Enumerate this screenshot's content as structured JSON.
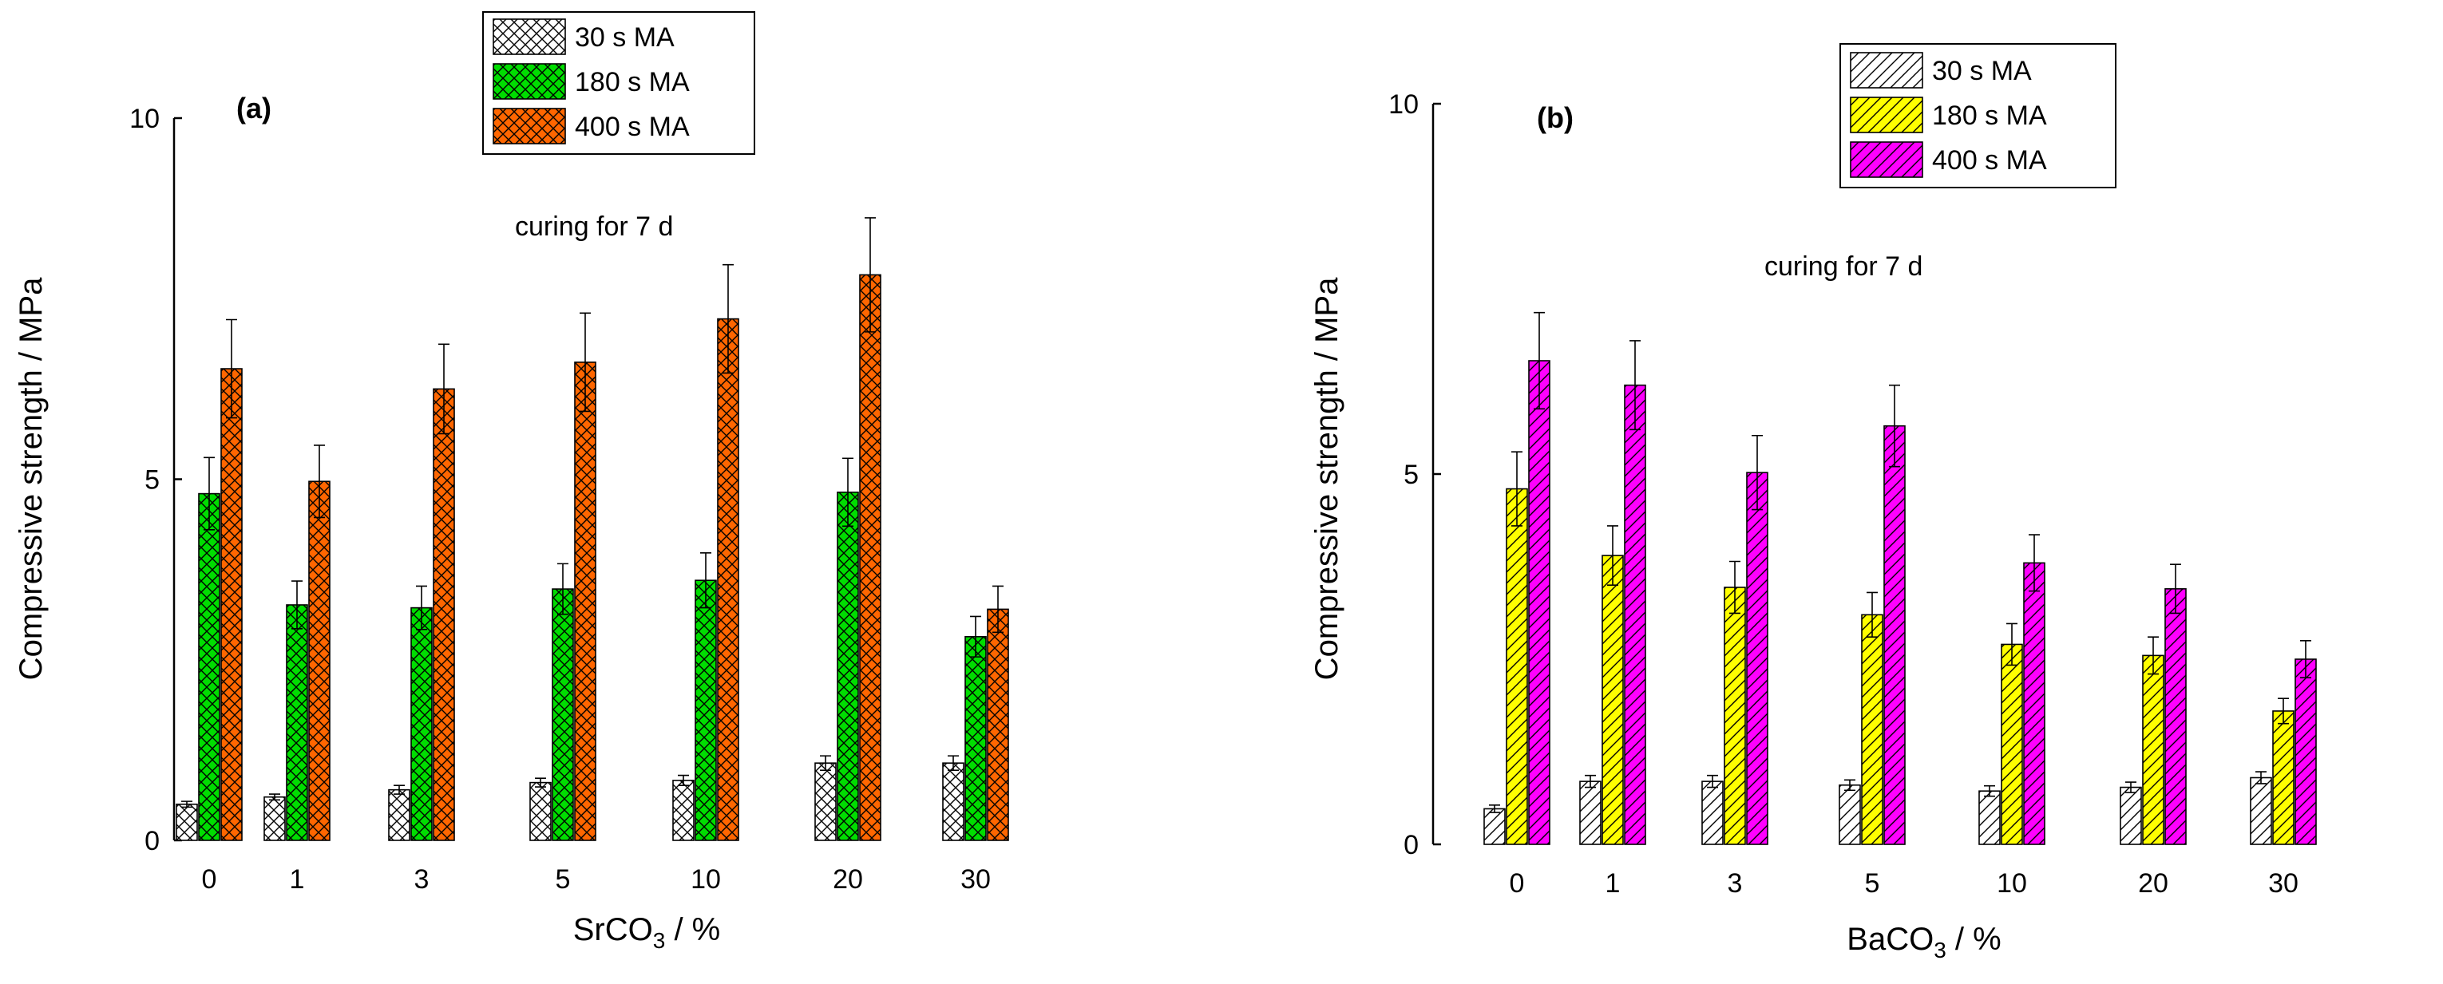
{
  "chart_data": [
    {
      "type": "bar",
      "panel_label": "(a)",
      "annotation": "curing for 7 d",
      "xlabel_main": "SrCO",
      "xlabel_sub": "3",
      "xlabel_suffix": " / %",
      "ylabel": "Compressive strength / MPa",
      "ylim": [
        0,
        10
      ],
      "yticks": [
        "0",
        "5",
        "10"
      ],
      "categories": [
        "0",
        "1",
        "3",
        "5",
        "10",
        "20",
        "30"
      ],
      "legend_position": "top-center",
      "hatch": "crosshatch",
      "series": [
        {
          "name": "30 s MA",
          "color": "#ffffff",
          "values": [
            0.5,
            0.6,
            0.7,
            0.8,
            0.83,
            1.07,
            1.07
          ],
          "errors": [
            0.04,
            0.04,
            0.06,
            0.06,
            0.07,
            0.1,
            0.1
          ]
        },
        {
          "name": "180 s MA",
          "color": "#00dd00",
          "values": [
            4.8,
            3.26,
            3.22,
            3.48,
            3.6,
            4.82,
            2.82
          ],
          "errors": [
            0.5,
            0.33,
            0.3,
            0.35,
            0.38,
            0.47,
            0.28
          ]
        },
        {
          "name": "400 s MA",
          "color": "#ff6600",
          "values": [
            6.53,
            4.97,
            6.25,
            6.62,
            7.22,
            7.83,
            3.2
          ],
          "errors": [
            0.68,
            0.5,
            0.62,
            0.68,
            0.75,
            0.79,
            0.32
          ]
        }
      ]
    },
    {
      "type": "bar",
      "panel_label": "(b)",
      "annotation": "curing for 7 d",
      "xlabel_main": "BaCO",
      "xlabel_sub": "3",
      "xlabel_suffix": " / %",
      "ylabel": "Compressive strength / MPa",
      "ylim": [
        0,
        10
      ],
      "yticks": [
        "0",
        "5",
        "10"
      ],
      "categories": [
        "0",
        "1",
        "3",
        "5",
        "10",
        "20",
        "30"
      ],
      "legend_position": "top-center",
      "hatch": "diagonal",
      "series": [
        {
          "name": "30 s MA",
          "color": "#ffffff",
          "values": [
            0.48,
            0.85,
            0.85,
            0.8,
            0.72,
            0.77,
            0.9
          ],
          "errors": [
            0.05,
            0.08,
            0.08,
            0.07,
            0.07,
            0.07,
            0.08
          ]
        },
        {
          "name": "180 s MA",
          "color": "#ffff00",
          "values": [
            4.8,
            3.9,
            3.47,
            3.1,
            2.7,
            2.55,
            1.8
          ],
          "errors": [
            0.5,
            0.4,
            0.35,
            0.3,
            0.28,
            0.25,
            0.17
          ]
        },
        {
          "name": "400 s MA",
          "color": "#ff00ff",
          "values": [
            6.53,
            6.2,
            5.02,
            5.65,
            3.8,
            3.45,
            2.5
          ],
          "errors": [
            0.65,
            0.6,
            0.5,
            0.55,
            0.38,
            0.33,
            0.25
          ]
        }
      ]
    }
  ]
}
